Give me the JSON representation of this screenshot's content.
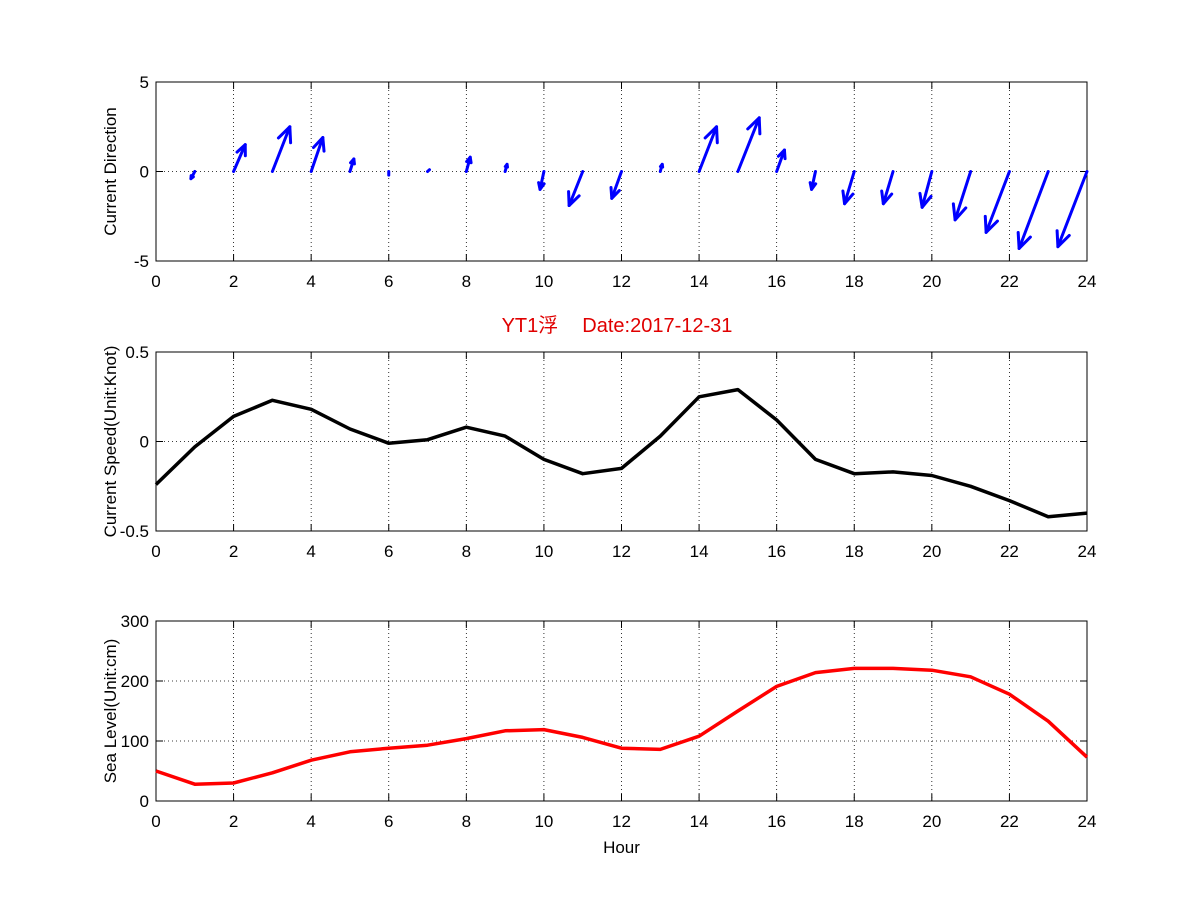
{
  "figure": {
    "title_station": "YT1浮",
    "title_date": "Date:2017-12-31"
  },
  "chart_data": [
    {
      "type": "quiver",
      "ylabel": "Current Direction",
      "xlim": [
        0,
        24
      ],
      "ylim": [
        -5,
        5
      ],
      "xticks": [
        0,
        2,
        4,
        6,
        8,
        10,
        12,
        14,
        16,
        18,
        20,
        22,
        24
      ],
      "yticks": [
        -5,
        0,
        5
      ],
      "grid": true,
      "color": "#0000ff",
      "vectors": [
        {
          "x": 1,
          "u": -0.1,
          "v": -0.4
        },
        {
          "x": 2,
          "u": 0.3,
          "v": 1.5
        },
        {
          "x": 3,
          "u": 0.45,
          "v": 2.5
        },
        {
          "x": 4,
          "u": 0.3,
          "v": 1.9
        },
        {
          "x": 5,
          "u": 0.1,
          "v": 0.7
        },
        {
          "x": 6,
          "u": 0.0,
          "v": -0.2
        },
        {
          "x": 7,
          "u": 0.05,
          "v": 0.1
        },
        {
          "x": 8,
          "u": 0.1,
          "v": 0.8
        },
        {
          "x": 9,
          "u": 0.05,
          "v": 0.4
        },
        {
          "x": 10,
          "u": -0.1,
          "v": -1.0
        },
        {
          "x": 11,
          "u": -0.35,
          "v": -1.9
        },
        {
          "x": 12,
          "u": -0.25,
          "v": -1.5
        },
        {
          "x": 13,
          "u": 0.05,
          "v": 0.4
        },
        {
          "x": 14,
          "u": 0.45,
          "v": 2.5
        },
        {
          "x": 15,
          "u": 0.55,
          "v": 3.0
        },
        {
          "x": 16,
          "u": 0.2,
          "v": 1.2
        },
        {
          "x": 17,
          "u": -0.1,
          "v": -1.0
        },
        {
          "x": 18,
          "u": -0.25,
          "v": -1.8
        },
        {
          "x": 19,
          "u": -0.25,
          "v": -1.8
        },
        {
          "x": 20,
          "u": -0.25,
          "v": -2.0
        },
        {
          "x": 21,
          "u": -0.4,
          "v": -2.7
        },
        {
          "x": 22,
          "u": -0.6,
          "v": -3.4
        },
        {
          "x": 23,
          "u": -0.75,
          "v": -4.3
        },
        {
          "x": 24,
          "u": -0.75,
          "v": -4.2
        }
      ]
    },
    {
      "type": "line",
      "ylabel": "Current Speed(Unit:Knot)",
      "xlim": [
        0,
        24
      ],
      "ylim": [
        -0.5,
        0.5
      ],
      "xticks": [
        0,
        2,
        4,
        6,
        8,
        10,
        12,
        14,
        16,
        18,
        20,
        22,
        24
      ],
      "yticks": [
        -0.5,
        0,
        0.5
      ],
      "grid": true,
      "color": "#000000",
      "x": [
        0,
        1,
        2,
        3,
        4,
        5,
        6,
        7,
        8,
        9,
        10,
        11,
        12,
        13,
        14,
        15,
        16,
        17,
        18,
        19,
        20,
        21,
        22,
        23,
        24
      ],
      "y": [
        -0.24,
        -0.03,
        0.14,
        0.23,
        0.18,
        0.07,
        -0.01,
        0.01,
        0.08,
        0.03,
        -0.1,
        -0.18,
        -0.15,
        0.03,
        0.25,
        0.29,
        0.12,
        -0.1,
        -0.18,
        -0.17,
        -0.19,
        -0.25,
        -0.33,
        -0.42,
        -0.4
      ]
    },
    {
      "type": "line",
      "ylabel": "Sea Level(Unit:cm)",
      "xlabel": "Hour",
      "xlim": [
        0,
        24
      ],
      "ylim": [
        0,
        300
      ],
      "xticks": [
        0,
        2,
        4,
        6,
        8,
        10,
        12,
        14,
        16,
        18,
        20,
        22,
        24
      ],
      "yticks": [
        0,
        100,
        200,
        300
      ],
      "grid": true,
      "color": "#ff0000",
      "x": [
        0,
        1,
        2,
        3,
        4,
        5,
        6,
        7,
        8,
        9,
        10,
        11,
        12,
        13,
        14,
        15,
        16,
        17,
        18,
        19,
        20,
        21,
        22,
        23,
        24
      ],
      "y": [
        50,
        28,
        30,
        47,
        68,
        82,
        88,
        93,
        104,
        117,
        119,
        106,
        88,
        86,
        108,
        150,
        191,
        214,
        221,
        221,
        218,
        207,
        178,
        133,
        73
      ]
    }
  ]
}
